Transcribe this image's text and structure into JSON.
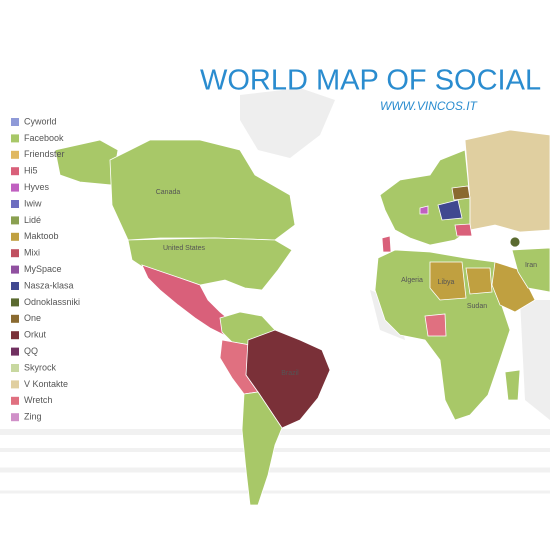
{
  "header": {
    "title": "WORLD MAP OF SOCIAL N",
    "subtitle": "WWW.VINCOS.IT"
  },
  "legend": {
    "items": [
      {
        "name": "Cyworld",
        "color": "#8f9ad8"
      },
      {
        "name": "Facebook",
        "color": "#a8c868"
      },
      {
        "name": "Friendster",
        "color": "#e0b860"
      },
      {
        "name": "Hi5",
        "color": "#d9607a"
      },
      {
        "name": "Hyves",
        "color": "#c060c0"
      },
      {
        "name": "Iwiw",
        "color": "#6e6ec0"
      },
      {
        "name": "Lidé",
        "color": "#8aa050"
      },
      {
        "name": "Maktoob",
        "color": "#c0a040"
      },
      {
        "name": "Mixi",
        "color": "#c05060"
      },
      {
        "name": "MySpace",
        "color": "#9050a0"
      },
      {
        "name": "Nasza-klasa",
        "color": "#404890"
      },
      {
        "name": "Odnoklassniki",
        "color": "#5a6a30"
      },
      {
        "name": "One",
        "color": "#8a6a30"
      },
      {
        "name": "Orkut",
        "color": "#7a3038"
      },
      {
        "name": "QQ",
        "color": "#703060"
      },
      {
        "name": "Skyrock",
        "color": "#c8d8a0"
      },
      {
        "name": "V Kontakte",
        "color": "#e0cfa0"
      },
      {
        "name": "Wretch",
        "color": "#e07080"
      },
      {
        "name": "Zing",
        "color": "#d090c8"
      }
    ]
  },
  "map": {
    "labels": [
      "Canada",
      "United States",
      "Brazil",
      "Algeria",
      "Libya",
      "Sudan",
      "Iran"
    ]
  }
}
